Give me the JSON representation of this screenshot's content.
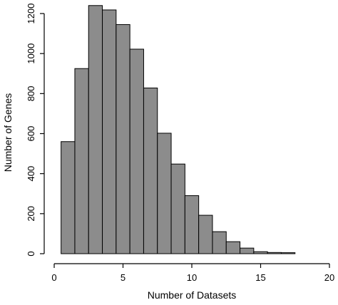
{
  "chart_data": {
    "type": "bar",
    "subtype": "histogram",
    "title": "",
    "xlabel": "Number of Datasets",
    "ylabel": "Number of Genes",
    "xlim": [
      0,
      20
    ],
    "ylim": [
      0,
      1200
    ],
    "x_ticks": [
      0,
      5,
      10,
      15,
      20
    ],
    "y_ticks": [
      0,
      200,
      400,
      600,
      800,
      1000,
      1200
    ],
    "bin_width": 1,
    "bins": [
      {
        "x": 1,
        "value": 560
      },
      {
        "x": 2,
        "value": 925
      },
      {
        "x": 3,
        "value": 1240
      },
      {
        "x": 4,
        "value": 1218
      },
      {
        "x": 5,
        "value": 1145
      },
      {
        "x": 6,
        "value": 1022
      },
      {
        "x": 7,
        "value": 828
      },
      {
        "x": 8,
        "value": 602
      },
      {
        "x": 9,
        "value": 448
      },
      {
        "x": 10,
        "value": 290
      },
      {
        "x": 11,
        "value": 192
      },
      {
        "x": 12,
        "value": 110
      },
      {
        "x": 13,
        "value": 60
      },
      {
        "x": 14,
        "value": 28
      },
      {
        "x": 15,
        "value": 10
      },
      {
        "x": 16,
        "value": 6
      },
      {
        "x": 17,
        "value": 5
      }
    ],
    "grid": false,
    "legend": "none",
    "bar_color": "#8c8c8c"
  }
}
